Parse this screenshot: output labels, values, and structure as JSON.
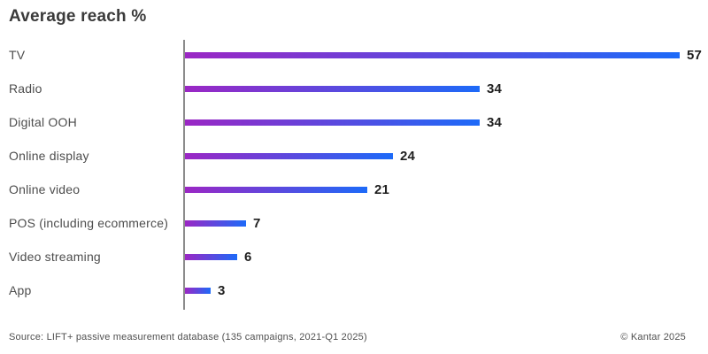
{
  "title": "Average reach %",
  "chart_data": {
    "type": "bar",
    "orientation": "horizontal",
    "title": "Average reach %",
    "categories": [
      "TV",
      "Radio",
      "Digital OOH",
      "Online display",
      "Online video",
      "POS (including ecommerce)",
      "Video streaming",
      "App"
    ],
    "values": [
      57,
      34,
      34,
      24,
      21,
      7,
      6,
      3
    ],
    "xlabel": "",
    "ylabel": "",
    "xlim": [
      0,
      58
    ],
    "grid": false,
    "legend": false,
    "value_labels_shown": true,
    "bar_gradient_start": "#9b27c4",
    "bar_gradient_end": "#1d6af8",
    "axis_color": "#8c8c8c"
  },
  "footer": {
    "source": "Source: LIFT+ passive measurement database (135 campaigns, 2021-Q1 2025)",
    "copyright": "© Kantar 2025"
  }
}
